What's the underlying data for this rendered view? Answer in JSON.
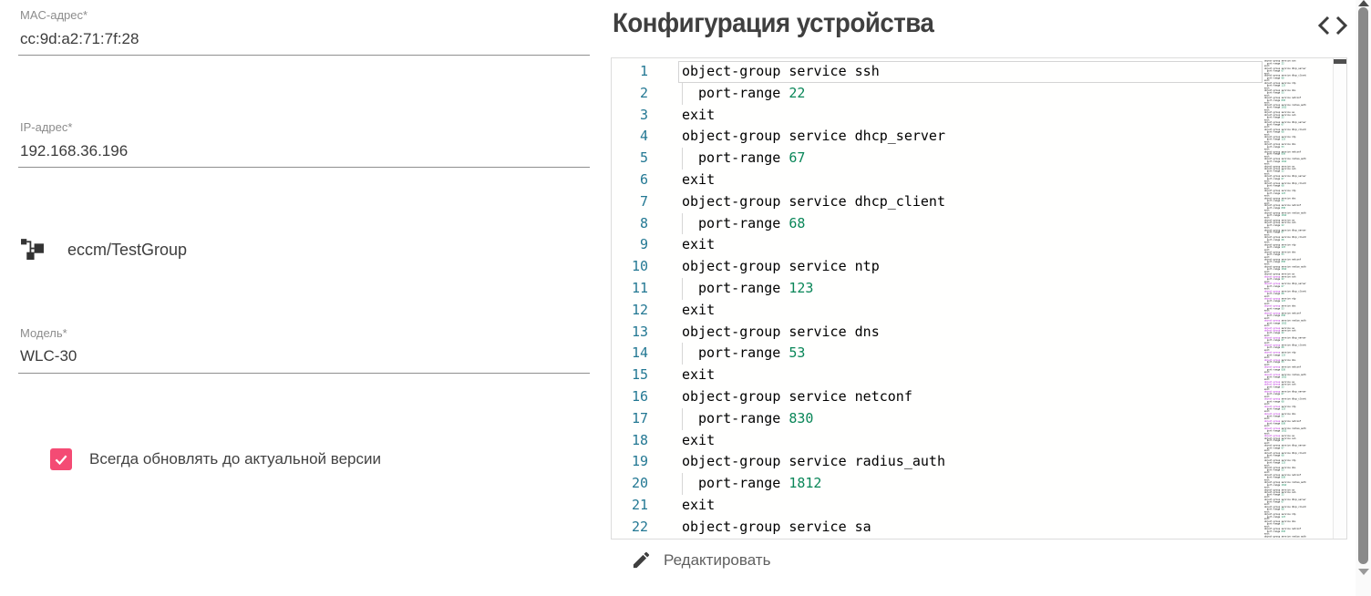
{
  "form": {
    "fields": [
      {
        "id": "mac",
        "label": "MAC-адрес*",
        "value": "cc:9d:a2:71:7f:28"
      },
      {
        "id": "ip",
        "label": "IP-адрес*",
        "value": "192.168.36.196"
      },
      {
        "id": "model",
        "label": "Модель*",
        "value": "WLC-30"
      }
    ],
    "group_path": "eccm/TestGroup",
    "auto_update_checkbox": {
      "label": "Всегда обновлять до актуальной версии",
      "checked": true
    }
  },
  "config_panel": {
    "title": "Конфигурация устройства",
    "edit_button_label": "Редактировать",
    "code_lines": [
      {
        "line": 1,
        "text": "object-group service ssh"
      },
      {
        "line": 2,
        "text": "port-range",
        "value": "22",
        "indent": true
      },
      {
        "line": 3,
        "text": "exit"
      },
      {
        "line": 4,
        "text": "object-group service dhcp_server"
      },
      {
        "line": 5,
        "text": "port-range",
        "value": "67",
        "indent": true
      },
      {
        "line": 6,
        "text": "exit"
      },
      {
        "line": 7,
        "text": "object-group service dhcp_client"
      },
      {
        "line": 8,
        "text": "port-range",
        "value": "68",
        "indent": true
      },
      {
        "line": 9,
        "text": "exit"
      },
      {
        "line": 10,
        "text": "object-group service ntp"
      },
      {
        "line": 11,
        "text": "port-range",
        "value": "123",
        "indent": true
      },
      {
        "line": 12,
        "text": "exit"
      },
      {
        "line": 13,
        "text": "object-group service dns"
      },
      {
        "line": 14,
        "text": "port-range",
        "value": "53",
        "indent": true
      },
      {
        "line": 15,
        "text": "exit"
      },
      {
        "line": 16,
        "text": "object-group service netconf"
      },
      {
        "line": 17,
        "text": "port-range",
        "value": "830",
        "indent": true
      },
      {
        "line": 18,
        "text": "exit"
      },
      {
        "line": 19,
        "text": "object-group service radius_auth"
      },
      {
        "line": 20,
        "text": "port-range",
        "value": "1812",
        "indent": true
      },
      {
        "line": 21,
        "text": "exit"
      },
      {
        "line": 22,
        "text": "object-group service sa"
      }
    ],
    "current_line": 1
  },
  "icons": {
    "group_tree": "device-group-tree-icon",
    "code_toggle": "code-angle-brackets-icon",
    "edit": "pencil-icon"
  },
  "colors": {
    "accent_pink": "#f44b74",
    "line_number": "#237893",
    "code_text": "#000000",
    "code_number": "#098658",
    "title_text": "#3f3f3f",
    "underline": "#8f8f8f"
  }
}
